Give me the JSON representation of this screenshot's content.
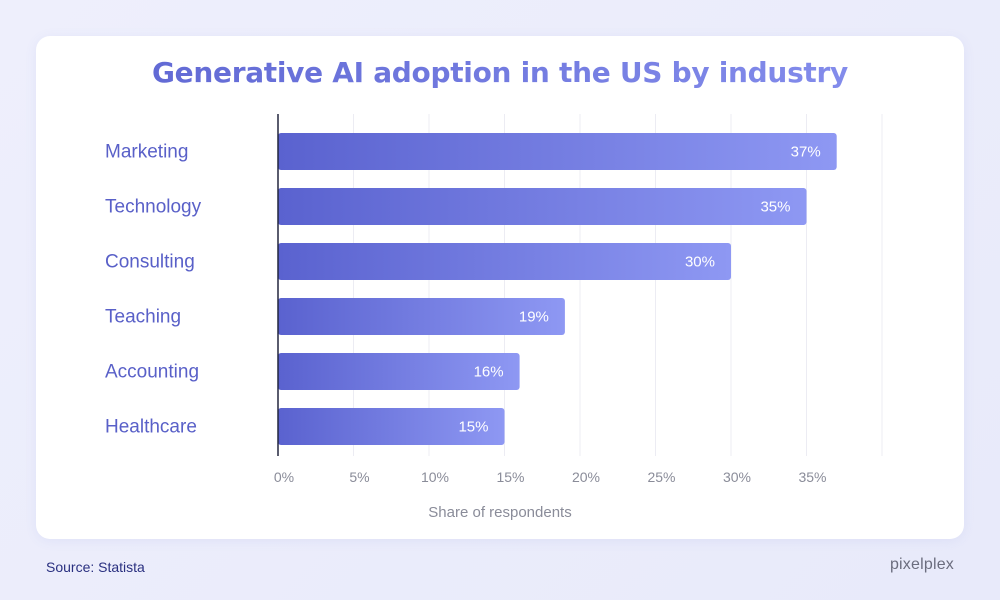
{
  "chart_data": {
    "type": "bar",
    "orientation": "horizontal",
    "title": "Generative AI adoption in the US by industry",
    "xlabel": "Share of respondents",
    "ylabel": "",
    "categories": [
      "Marketing",
      "Technology",
      "Consulting",
      "Teaching",
      "Accounting",
      "Healthcare"
    ],
    "values": [
      37,
      35,
      30,
      19,
      16,
      15
    ],
    "value_labels": [
      "37%",
      "35%",
      "30%",
      "19%",
      "16%",
      "15%"
    ],
    "xlim": [
      0,
      40
    ],
    "xticks": [
      0,
      5,
      10,
      15,
      20,
      25,
      30,
      35
    ],
    "xtick_labels": [
      "0%",
      "5%",
      "10%",
      "15%",
      "20%",
      "25%",
      "30%",
      "35%"
    ],
    "grid": true,
    "colors": {
      "bar_start": "#5a62cf",
      "bar_end": "#8e98f3",
      "category_label": "#5960c8",
      "tick_label": "#8a8c99"
    }
  },
  "footer": {
    "source": "Source: Statista",
    "brand": "pixelplex"
  }
}
